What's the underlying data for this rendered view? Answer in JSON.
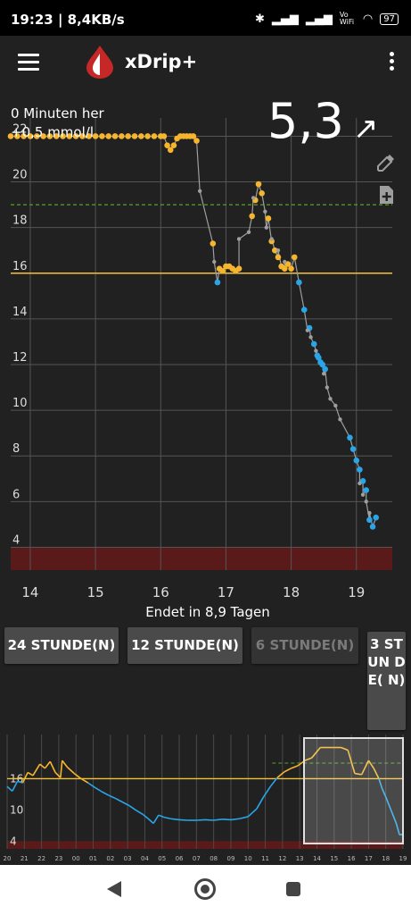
{
  "status_bar": {
    "time": "19:23 | 8,4KB/s",
    "network_label": "Vo WiFi",
    "battery": "97"
  },
  "app": {
    "title": "xDrip+"
  },
  "reading": {
    "minutes_ago": "0 Minuten her",
    "delta": "+0,5 mmol/l",
    "value": "5,3",
    "trend_arrow": "↗"
  },
  "icons": {
    "menu": "menu-icon",
    "logo": "blood-drop-icon",
    "overflow": "more-vert-icon",
    "eyedropper": "eyedropper-icon",
    "add_note": "note-add-icon"
  },
  "colors": {
    "background": "#212121",
    "high_line": "#f3c13a",
    "target_line": "#5aa02c",
    "low_zone": "#5a1a1a",
    "in_range_point": "#f5b62e",
    "low_trend_point": "#2aa6e8",
    "raw_point": "#9e9e9e"
  },
  "chart_data": {
    "type": "scatter",
    "x_ticks": [
      14,
      15,
      16,
      17,
      18,
      19
    ],
    "y_ticks": [
      4,
      6,
      8,
      10,
      12,
      14,
      16,
      18,
      20,
      22
    ],
    "y_tick_labels": [
      "4",
      "6",
      "8",
      "10",
      "12",
      "14",
      "16",
      "18",
      "20",
      "22"
    ],
    "xlim": [
      13.7,
      19.55
    ],
    "ylim": [
      3.0,
      22.8
    ],
    "xlabel": "Endet in 8,9 Tagen",
    "high_line": 16,
    "target_line": 19,
    "low_zone": [
      3.0,
      4.0
    ],
    "series": [
      {
        "color": "#f5b62e",
        "x": [
          13.7,
          13.8,
          13.9,
          14.0,
          14.1,
          14.2,
          14.3,
          14.4,
          14.5,
          14.6,
          14.7,
          14.8,
          14.9,
          15.0,
          15.1,
          15.2,
          15.3,
          15.4,
          15.5,
          15.6,
          15.7,
          15.8,
          15.9,
          16.0,
          16.05,
          16.1,
          16.15,
          16.2,
          16.25,
          16.3,
          16.35,
          16.4,
          16.45,
          16.5,
          16.55,
          16.8,
          16.9,
          16.95,
          17.0,
          17.05,
          17.1,
          17.15,
          17.2,
          17.4,
          17.45,
          17.5,
          17.55,
          17.65,
          17.7,
          17.75,
          17.8,
          17.85,
          17.9,
          17.95,
          18.0,
          18.05
        ],
        "y": [
          22.0,
          22.0,
          22.0,
          22.0,
          22.0,
          22.0,
          22.0,
          22.0,
          22.0,
          22.0,
          22.0,
          22.0,
          22.0,
          22.0,
          22.0,
          22.0,
          22.0,
          22.0,
          22.0,
          22.0,
          22.0,
          22.0,
          22.0,
          22.0,
          22.0,
          21.6,
          21.4,
          21.6,
          21.9,
          22.0,
          22.0,
          22.0,
          22.0,
          22.0,
          21.8,
          17.3,
          16.2,
          16.1,
          16.3,
          16.3,
          16.2,
          16.1,
          16.2,
          18.5,
          19.2,
          19.9,
          19.5,
          18.4,
          17.4,
          17.0,
          16.7,
          16.3,
          16.2,
          16.4,
          16.2,
          16.7
        ]
      },
      {
        "color": "#2aa6e8",
        "x": [
          16.87,
          18.12,
          18.2,
          18.28,
          18.35,
          18.4,
          18.42,
          18.45,
          18.48,
          18.52,
          18.9,
          18.95,
          19.0,
          19.05,
          19.1,
          19.15,
          19.2,
          19.25,
          19.3
        ],
        "y": [
          15.6,
          15.6,
          14.4,
          13.6,
          12.9,
          12.4,
          12.3,
          12.1,
          12.0,
          11.8,
          8.8,
          8.3,
          7.8,
          7.4,
          6.9,
          6.5,
          5.2,
          4.9,
          5.3
        ]
      },
      {
        "color": "#9e9e9e",
        "x": [
          16.6,
          16.82,
          17.2,
          17.35,
          17.42,
          17.6,
          17.62,
          17.7,
          17.8,
          17.9,
          18.25,
          18.3,
          18.38,
          18.5,
          18.55,
          18.6,
          18.68,
          18.75,
          19.05,
          19.1,
          19.15,
          19.2
        ],
        "y": [
          19.6,
          16.5,
          17.5,
          17.8,
          19.3,
          18.7,
          18.0,
          17.5,
          17.0,
          16.5,
          13.5,
          13.2,
          12.6,
          11.6,
          11.0,
          10.5,
          10.2,
          9.6,
          6.8,
          6.3,
          6.0,
          5.5
        ]
      }
    ]
  },
  "range_buttons": [
    "24 STUNDE(N)",
    "12 STUNDE(N)",
    "6 STUNDE(N)",
    "3 ST UN DE( N)"
  ],
  "overview": {
    "x_tick_labels": [
      "20",
      "21",
      "22",
      "23",
      "00",
      "01",
      "02",
      "03",
      "04",
      "05",
      "06",
      "07",
      "08",
      "09",
      "10",
      "11",
      "12",
      "13",
      "14",
      "15",
      "16",
      "17",
      "18",
      "19"
    ],
    "y_tick_labels": [
      "16",
      "10",
      "4"
    ],
    "y_ticks": [
      16,
      10,
      4
    ],
    "ylim": [
      2.5,
      24.5
    ],
    "xlim": [
      0,
      23
    ],
    "high_line": 16,
    "target_line": 19,
    "low_zone": [
      2.5,
      4.0
    ],
    "trace": [
      [
        0,
        14.5
      ],
      [
        0.3,
        13.6
      ],
      [
        0.6,
        15.5
      ],
      [
        0.9,
        15.2
      ],
      [
        1.2,
        17.2
      ],
      [
        1.5,
        16.6
      ],
      [
        1.9,
        18.8
      ],
      [
        2.2,
        18.0
      ],
      [
        2.5,
        19.3
      ],
      [
        2.8,
        17.2
      ],
      [
        3.1,
        16.2
      ],
      [
        3.2,
        19.5
      ],
      [
        3.5,
        18.2
      ],
      [
        3.9,
        17.0
      ],
      [
        4.3,
        16.0
      ],
      [
        4.7,
        15.2
      ],
      [
        5.1,
        14.3
      ],
      [
        5.5,
        13.5
      ],
      [
        5.9,
        12.8
      ],
      [
        6.3,
        12.2
      ],
      [
        6.7,
        11.5
      ],
      [
        7.1,
        10.8
      ],
      [
        7.5,
        9.9
      ],
      [
        7.9,
        9.1
      ],
      [
        8.2,
        8.3
      ],
      [
        8.5,
        7.4
      ],
      [
        8.8,
        9.0
      ],
      [
        9.1,
        8.6
      ],
      [
        9.5,
        8.3
      ],
      [
        10.0,
        8.1
      ],
      [
        10.5,
        8.0
      ],
      [
        11.0,
        8.0
      ],
      [
        11.5,
        8.1
      ],
      [
        12.0,
        8.0
      ],
      [
        12.5,
        8.2
      ],
      [
        13.0,
        8.1
      ],
      [
        13.5,
        8.3
      ],
      [
        14.0,
        8.7
      ],
      [
        14.5,
        10.2
      ],
      [
        14.9,
        12.5
      ],
      [
        15.3,
        14.5
      ],
      [
        15.7,
        16.2
      ],
      [
        16.1,
        17.3
      ],
      [
        16.5,
        18.0
      ],
      [
        16.9,
        18.5
      ],
      [
        17.3,
        19.5
      ],
      [
        17.7,
        20.0
      ],
      [
        18.2,
        22.0
      ],
      [
        18.6,
        22.0
      ],
      [
        19.0,
        22.0
      ],
      [
        19.4,
        22.0
      ],
      [
        19.8,
        21.5
      ],
      [
        20.2,
        17.0
      ],
      [
        20.6,
        16.8
      ],
      [
        21.0,
        19.5
      ],
      [
        21.3,
        18.0
      ],
      [
        21.6,
        16.0
      ],
      [
        21.8,
        14.0
      ],
      [
        22.0,
        12.5
      ],
      [
        22.3,
        10.0
      ],
      [
        22.6,
        7.5
      ],
      [
        22.8,
        5.2
      ],
      [
        23.0,
        5.3
      ]
    ],
    "selection": [
      17.25,
      23.0
    ]
  },
  "system_nav": {
    "back": "back-icon",
    "home": "home-icon",
    "recent": "recent-apps-icon"
  }
}
